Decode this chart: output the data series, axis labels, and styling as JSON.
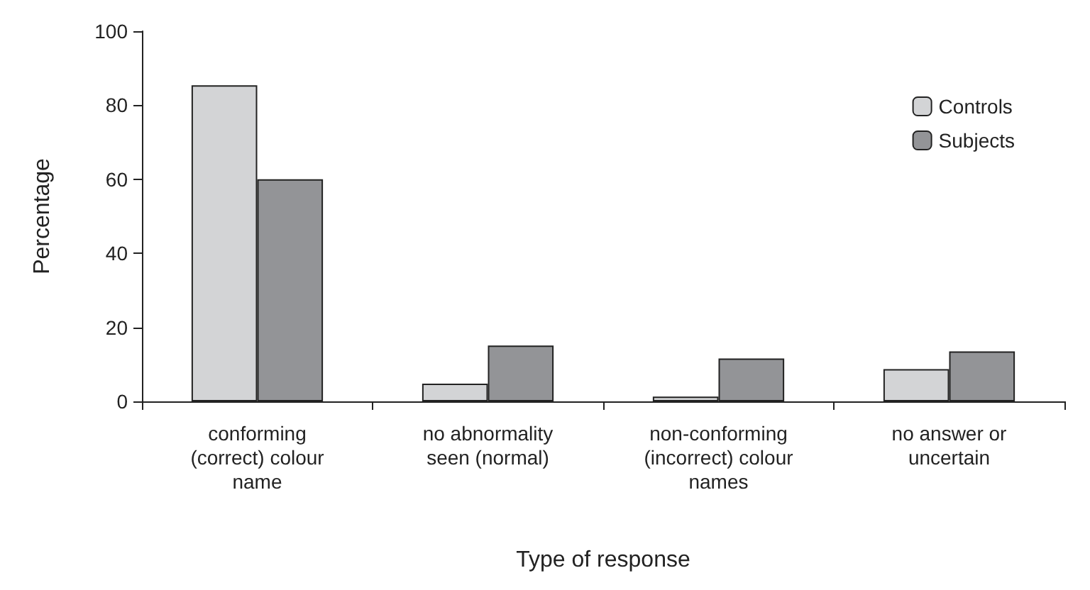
{
  "chart_data": {
    "type": "bar",
    "xlabel": "Type of response",
    "ylabel": "Percentage",
    "categories": [
      "conforming\n(correct) colour\nname",
      "no abnormality\nseen (normal)",
      "non-conforming\n(incorrect) colour\nnames",
      "no answer or\nuncertain"
    ],
    "series": [
      {
        "name": "Controls",
        "color": "#d3d4d6",
        "values": [
          85.4,
          4.8,
          1.3,
          8.7
        ]
      },
      {
        "name": "Subjects",
        "color": "#939497",
        "values": [
          60,
          15.1,
          11.6,
          13.5
        ]
      }
    ],
    "ylim": [
      0,
      100
    ],
    "yticks": [
      0,
      20,
      40,
      60,
      80,
      100
    ],
    "grid": false,
    "legend": "top right"
  }
}
